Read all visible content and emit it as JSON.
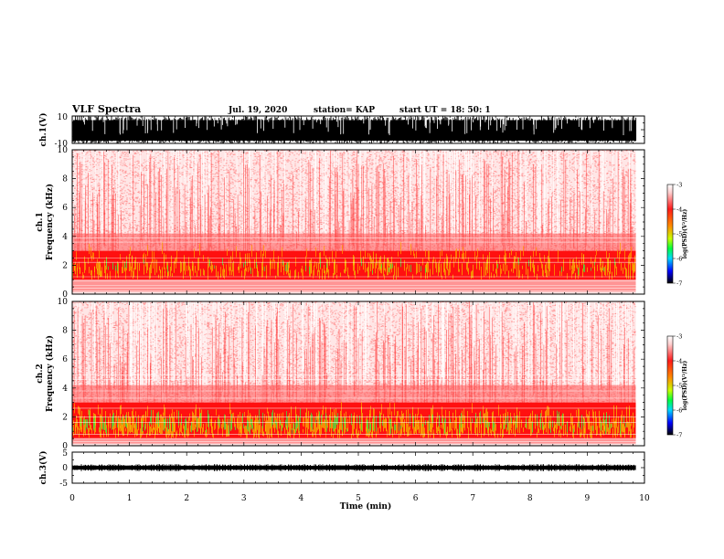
{
  "header": {
    "title": "VLF Spectra",
    "date": "Jul. 19, 2020",
    "station": "station= KAP",
    "start": "start UT = 18: 50: 1"
  },
  "chart_data": [
    {
      "id": "ch1-waveform",
      "type": "area",
      "ylabel": "ch.1(V)",
      "ylim": [
        -10,
        10
      ],
      "yticks": [
        "10",
        "-10"
      ],
      "xlim": [
        0,
        10
      ],
      "x_max_data": 9.85,
      "envelope": "saturated, spiky between about -10 and 10 V",
      "color": "#000000"
    },
    {
      "id": "ch1-spectrogram",
      "type": "heatmap",
      "ylabel": "ch.1\nFrequency (kHz)",
      "ylim": [
        0,
        10
      ],
      "yticks": [
        "0",
        "2",
        "4",
        "6",
        "8",
        "10"
      ],
      "xlim": [
        0,
        10
      ],
      "x_max_data": 9.85,
      "colorbar": {
        "label": "log(PSD)(V²/Hz)",
        "range": [
          -7,
          -3
        ],
        "ticks": [
          "-3",
          "-4",
          "-5",
          "-6",
          "-7"
        ]
      },
      "intense_band_khz": [
        1.0,
        3.0
      ]
    },
    {
      "id": "ch2-spectrogram",
      "type": "heatmap",
      "ylabel": "ch.2\nFrequency (kHz)",
      "ylim": [
        0,
        10
      ],
      "yticks": [
        "0",
        "2",
        "4",
        "6",
        "8",
        "10"
      ],
      "xlim": [
        0,
        10
      ],
      "x_max_data": 9.85,
      "colorbar": {
        "label": "log(PSD)(V²/Hz)",
        "range": [
          -7,
          -3
        ],
        "ticks": [
          "-3",
          "-4",
          "-5",
          "-6",
          "-7"
        ]
      },
      "intense_band_khz": [
        0.5,
        3.0
      ]
    },
    {
      "id": "ch3-waveform",
      "type": "line",
      "ylabel": "ch.3(V)",
      "ylim": [
        -5,
        5
      ],
      "yticks": [
        "5",
        "0",
        "-5"
      ],
      "xlim": [
        0,
        10
      ],
      "x_max_data": 9.85,
      "level_v": [
        -0.6,
        0.6
      ],
      "color": "#000000"
    }
  ],
  "xaxis": {
    "label": "Time (min)",
    "ticks": [
      "0",
      "1",
      "2",
      "3",
      "4",
      "5",
      "6",
      "7",
      "8",
      "9",
      "10"
    ]
  },
  "colors": {
    "colorbar_stops": [
      "#ffffff",
      "#ff9090",
      "#ff0000",
      "#ffff00",
      "#00ff00",
      "#00ffff",
      "#0000ff",
      "#000000"
    ]
  }
}
